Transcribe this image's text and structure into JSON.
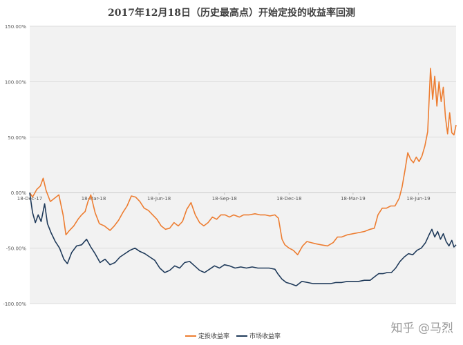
{
  "chart_data": {
    "type": "line",
    "title": "2017年12月18日（历史最高点）开始定投的收益率回测",
    "xlabel": "",
    "ylabel": "",
    "ylim": [
      -1.0,
      1.5
    ],
    "y_ticks": [
      1.5,
      1.0,
      0.5,
      0.0,
      -0.5,
      -1.0
    ],
    "y_tick_labels": [
      "150.00%",
      "100.00%",
      "50.00%",
      "0.00%",
      "-50.00%",
      "-100.00%"
    ],
    "x_tick_labels": [
      "18-Dec-17",
      "18-Mar-18",
      "18-Jun-18",
      "18-Sep-18",
      "18-Dec-18",
      "18-Mar-19",
      "18-Jun-19"
    ],
    "x_ticks": [
      "2017-12-18",
      "2018-03-18",
      "2018-06-18",
      "2018-09-18",
      "2018-12-18",
      "2019-03-18",
      "2019-06-18"
    ],
    "x_range": [
      "2017-12-18",
      "2019-08-10"
    ],
    "grid": true,
    "legend_position": "bottom",
    "series": [
      {
        "name": "定投收益率",
        "color": "#ED7D31",
        "points": [
          [
            "2017-12-18",
            0.0
          ],
          [
            "2017-12-22",
            -0.04
          ],
          [
            "2017-12-28",
            0.03
          ],
          [
            "2018-01-02",
            0.06
          ],
          [
            "2018-01-06",
            0.13
          ],
          [
            "2018-01-10",
            0.02
          ],
          [
            "2018-01-16",
            -0.08
          ],
          [
            "2018-01-22",
            -0.05
          ],
          [
            "2018-01-28",
            -0.02
          ],
          [
            "2018-02-03",
            -0.2
          ],
          [
            "2018-02-07",
            -0.38
          ],
          [
            "2018-02-12",
            -0.34
          ],
          [
            "2018-02-18",
            -0.3
          ],
          [
            "2018-02-24",
            -0.24
          ],
          [
            "2018-03-01",
            -0.2
          ],
          [
            "2018-03-06",
            -0.17
          ],
          [
            "2018-03-10",
            -0.08
          ],
          [
            "2018-03-14",
            -0.02
          ],
          [
            "2018-03-20",
            -0.18
          ],
          [
            "2018-03-26",
            -0.28
          ],
          [
            "2018-04-02",
            -0.3
          ],
          [
            "2018-04-10",
            -0.34
          ],
          [
            "2018-04-16",
            -0.3
          ],
          [
            "2018-04-22",
            -0.25
          ],
          [
            "2018-04-28",
            -0.18
          ],
          [
            "2018-05-04",
            -0.12
          ],
          [
            "2018-05-10",
            -0.03
          ],
          [
            "2018-05-16",
            -0.04
          ],
          [
            "2018-05-22",
            -0.08
          ],
          [
            "2018-05-28",
            -0.14
          ],
          [
            "2018-06-03",
            -0.16
          ],
          [
            "2018-06-09",
            -0.2
          ],
          [
            "2018-06-15",
            -0.24
          ],
          [
            "2018-06-21",
            -0.3
          ],
          [
            "2018-06-27",
            -0.33
          ],
          [
            "2018-07-03",
            -0.32
          ],
          [
            "2018-07-09",
            -0.27
          ],
          [
            "2018-07-15",
            -0.3
          ],
          [
            "2018-07-21",
            -0.26
          ],
          [
            "2018-07-27",
            -0.15
          ],
          [
            "2018-08-02",
            -0.09
          ],
          [
            "2018-08-08",
            -0.2
          ],
          [
            "2018-08-14",
            -0.27
          ],
          [
            "2018-08-20",
            -0.3
          ],
          [
            "2018-08-26",
            -0.27
          ],
          [
            "2018-09-01",
            -0.22
          ],
          [
            "2018-09-07",
            -0.24
          ],
          [
            "2018-09-13",
            -0.2
          ],
          [
            "2018-09-19",
            -0.2
          ],
          [
            "2018-09-25",
            -0.22
          ],
          [
            "2018-10-01",
            -0.2
          ],
          [
            "2018-10-09",
            -0.22
          ],
          [
            "2018-10-15",
            -0.2
          ],
          [
            "2018-10-23",
            -0.2
          ],
          [
            "2018-10-31",
            -0.19
          ],
          [
            "2018-11-07",
            -0.2
          ],
          [
            "2018-11-14",
            -0.2
          ],
          [
            "2018-11-21",
            -0.21
          ],
          [
            "2018-11-28",
            -0.2
          ],
          [
            "2018-12-03",
            -0.23
          ],
          [
            "2018-12-08",
            -0.42
          ],
          [
            "2018-12-12",
            -0.47
          ],
          [
            "2018-12-18",
            -0.5
          ],
          [
            "2018-12-24",
            -0.52
          ],
          [
            "2018-12-30",
            -0.56
          ],
          [
            "2019-01-06",
            -0.48
          ],
          [
            "2019-01-12",
            -0.44
          ],
          [
            "2019-01-18",
            -0.45
          ],
          [
            "2019-01-24",
            -0.46
          ],
          [
            "2019-02-01",
            -0.47
          ],
          [
            "2019-02-10",
            -0.48
          ],
          [
            "2019-02-18",
            -0.45
          ],
          [
            "2019-02-24",
            -0.4
          ],
          [
            "2019-03-02",
            -0.4
          ],
          [
            "2019-03-10",
            -0.38
          ],
          [
            "2019-03-18",
            -0.37
          ],
          [
            "2019-03-26",
            -0.36
          ],
          [
            "2019-04-03",
            -0.35
          ],
          [
            "2019-04-11",
            -0.33
          ],
          [
            "2019-04-17",
            -0.32
          ],
          [
            "2019-04-22",
            -0.2
          ],
          [
            "2019-04-28",
            -0.14
          ],
          [
            "2019-05-04",
            -0.14
          ],
          [
            "2019-05-10",
            -0.12
          ],
          [
            "2019-05-16",
            -0.12
          ],
          [
            "2019-05-22",
            -0.05
          ],
          [
            "2019-05-26",
            0.05
          ],
          [
            "2019-05-30",
            0.2
          ],
          [
            "2019-06-03",
            0.36
          ],
          [
            "2019-06-07",
            0.3
          ],
          [
            "2019-06-11",
            0.27
          ],
          [
            "2019-06-15",
            0.32
          ],
          [
            "2019-06-19",
            0.28
          ],
          [
            "2019-06-23",
            0.33
          ],
          [
            "2019-06-27",
            0.42
          ],
          [
            "2019-07-01",
            0.55
          ],
          [
            "2019-07-05",
            1.12
          ],
          [
            "2019-07-08",
            0.84
          ],
          [
            "2019-07-11",
            1.05
          ],
          [
            "2019-07-14",
            0.78
          ],
          [
            "2019-07-17",
            1.0
          ],
          [
            "2019-07-20",
            0.82
          ],
          [
            "2019-07-23",
            0.95
          ],
          [
            "2019-07-26",
            0.68
          ],
          [
            "2019-07-29",
            0.53
          ],
          [
            "2019-08-01",
            0.72
          ],
          [
            "2019-08-04",
            0.54
          ],
          [
            "2019-08-07",
            0.52
          ],
          [
            "2019-08-10",
            0.61
          ]
        ]
      },
      {
        "name": "市场收益率",
        "color": "#1F3A5A",
        "points": [
          [
            "2017-12-18",
            0.0
          ],
          [
            "2017-12-22",
            -0.18
          ],
          [
            "2017-12-26",
            -0.27
          ],
          [
            "2017-12-30",
            -0.2
          ],
          [
            "2018-01-03",
            -0.26
          ],
          [
            "2018-01-08",
            -0.1
          ],
          [
            "2018-01-12",
            -0.28
          ],
          [
            "2018-01-17",
            -0.36
          ],
          [
            "2018-01-23",
            -0.44
          ],
          [
            "2018-01-29",
            -0.5
          ],
          [
            "2018-02-04",
            -0.6
          ],
          [
            "2018-02-09",
            -0.64
          ],
          [
            "2018-02-15",
            -0.54
          ],
          [
            "2018-02-22",
            -0.48
          ],
          [
            "2018-03-01",
            -0.47
          ],
          [
            "2018-03-08",
            -0.42
          ],
          [
            "2018-03-14",
            -0.49
          ],
          [
            "2018-03-20",
            -0.55
          ],
          [
            "2018-03-27",
            -0.63
          ],
          [
            "2018-04-03",
            -0.6
          ],
          [
            "2018-04-10",
            -0.65
          ],
          [
            "2018-04-17",
            -0.63
          ],
          [
            "2018-04-24",
            -0.58
          ],
          [
            "2018-05-01",
            -0.55
          ],
          [
            "2018-05-08",
            -0.52
          ],
          [
            "2018-05-15",
            -0.5
          ],
          [
            "2018-05-22",
            -0.53
          ],
          [
            "2018-05-29",
            -0.55
          ],
          [
            "2018-06-05",
            -0.58
          ],
          [
            "2018-06-12",
            -0.61
          ],
          [
            "2018-06-19",
            -0.68
          ],
          [
            "2018-06-26",
            -0.72
          ],
          [
            "2018-07-03",
            -0.7
          ],
          [
            "2018-07-10",
            -0.66
          ],
          [
            "2018-07-17",
            -0.68
          ],
          [
            "2018-07-24",
            -0.63
          ],
          [
            "2018-07-31",
            -0.62
          ],
          [
            "2018-08-07",
            -0.66
          ],
          [
            "2018-08-14",
            -0.7
          ],
          [
            "2018-08-21",
            -0.72
          ],
          [
            "2018-08-28",
            -0.69
          ],
          [
            "2018-09-04",
            -0.66
          ],
          [
            "2018-09-11",
            -0.68
          ],
          [
            "2018-09-18",
            -0.65
          ],
          [
            "2018-09-25",
            -0.66
          ],
          [
            "2018-10-03",
            -0.68
          ],
          [
            "2018-10-11",
            -0.67
          ],
          [
            "2018-10-19",
            -0.68
          ],
          [
            "2018-10-27",
            -0.67
          ],
          [
            "2018-11-04",
            -0.68
          ],
          [
            "2018-11-12",
            -0.68
          ],
          [
            "2018-11-20",
            -0.68
          ],
          [
            "2018-11-28",
            -0.69
          ],
          [
            "2018-12-02",
            -0.73
          ],
          [
            "2018-12-08",
            -0.78
          ],
          [
            "2018-12-14",
            -0.81
          ],
          [
            "2018-12-20",
            -0.82
          ],
          [
            "2018-12-28",
            -0.84
          ],
          [
            "2019-01-05",
            -0.8
          ],
          [
            "2019-01-13",
            -0.81
          ],
          [
            "2019-01-21",
            -0.82
          ],
          [
            "2019-01-29",
            -0.82
          ],
          [
            "2019-02-06",
            -0.82
          ],
          [
            "2019-02-14",
            -0.82
          ],
          [
            "2019-02-22",
            -0.81
          ],
          [
            "2019-03-02",
            -0.81
          ],
          [
            "2019-03-10",
            -0.8
          ],
          [
            "2019-03-18",
            -0.8
          ],
          [
            "2019-03-26",
            -0.8
          ],
          [
            "2019-04-03",
            -0.79
          ],
          [
            "2019-04-11",
            -0.79
          ],
          [
            "2019-04-17",
            -0.76
          ],
          [
            "2019-04-23",
            -0.73
          ],
          [
            "2019-04-29",
            -0.73
          ],
          [
            "2019-05-05",
            -0.72
          ],
          [
            "2019-05-11",
            -0.72
          ],
          [
            "2019-05-17",
            -0.68
          ],
          [
            "2019-05-23",
            -0.62
          ],
          [
            "2019-05-29",
            -0.58
          ],
          [
            "2019-06-04",
            -0.55
          ],
          [
            "2019-06-10",
            -0.56
          ],
          [
            "2019-06-16",
            -0.52
          ],
          [
            "2019-06-22",
            -0.5
          ],
          [
            "2019-06-28",
            -0.45
          ],
          [
            "2019-07-03",
            -0.38
          ],
          [
            "2019-07-07",
            -0.33
          ],
          [
            "2019-07-11",
            -0.4
          ],
          [
            "2019-07-15",
            -0.35
          ],
          [
            "2019-07-19",
            -0.42
          ],
          [
            "2019-07-23",
            -0.37
          ],
          [
            "2019-07-27",
            -0.44
          ],
          [
            "2019-07-31",
            -0.48
          ],
          [
            "2019-08-04",
            -0.43
          ],
          [
            "2019-08-07",
            -0.49
          ],
          [
            "2019-08-10",
            -0.47
          ]
        ]
      }
    ]
  },
  "watermark": "知乎 @马烈"
}
